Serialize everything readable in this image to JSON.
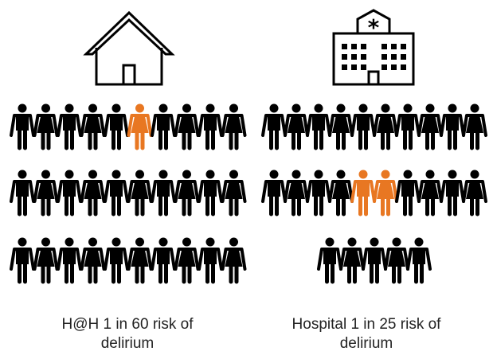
{
  "icons": {
    "left": "house-icon",
    "right": "hospital-icon"
  },
  "colors": {
    "person": "#000000",
    "highlight": "#e87722"
  },
  "left_panel": {
    "caption_line1": "H@H 1 in 60 risk of",
    "caption_line2": "delirium",
    "rows": [
      10,
      10,
      10
    ],
    "highlighted": [
      5
    ]
  },
  "right_panel": {
    "caption_line1": "Hospital 1 in 25 risk of",
    "caption_line2": "delirium",
    "rows": [
      10,
      10,
      5
    ],
    "highlighted": [
      14,
      15
    ]
  }
}
